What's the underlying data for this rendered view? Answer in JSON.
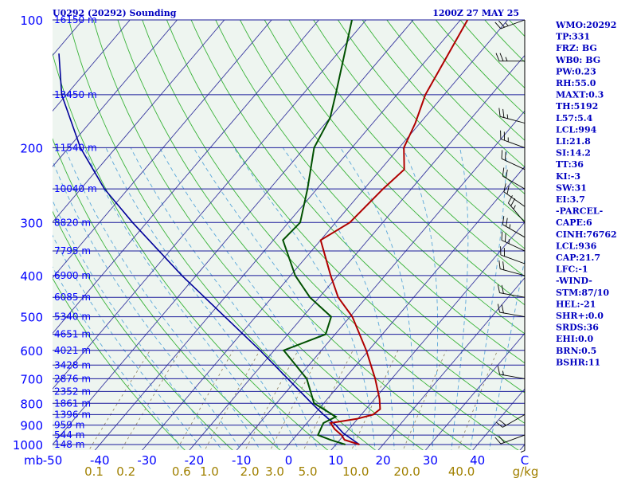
{
  "title_left": "U0292 (20292) Sounding",
  "title_right": "1200Z 27 MAY 25",
  "colors": {
    "plot_bg": "#eef5f0",
    "isobar": "#1a1a9a",
    "isotherm": "#3a3aa0",
    "dry_adiabat": "#39b339",
    "moist_adiabat": "#59a6d9",
    "mixing_ratio": "#908060",
    "temperature": "#b00000",
    "dewpoint": "#005000",
    "parcel": "#00009a",
    "wind_barb": "#000000"
  },
  "chart_data": {
    "type": "skew-t log-p sounding",
    "y_axis": {
      "label": "mb",
      "scale": "log",
      "range": [
        1000,
        100
      ],
      "ticks": [
        100,
        200,
        300,
        400,
        500,
        600,
        700,
        800,
        900,
        1000
      ]
    },
    "x_axis": {
      "range": [
        -50,
        50
      ],
      "ticks": [
        -50,
        -40,
        -30,
        -20,
        -10,
        0,
        10,
        20,
        30,
        40
      ],
      "last_tick_label": "C"
    },
    "mixing_ratio_axis": {
      "unit": "g/kg",
      "labels": [
        "0.1",
        "0.2",
        "0.6",
        "1.0",
        "2.0",
        "3.0",
        "5.0",
        "10.0",
        "20.0",
        "40.0"
      ],
      "values": [
        0.1,
        0.2,
        0.6,
        1.0,
        2.0,
        3.0,
        5.0,
        10.0,
        20.0,
        40.0
      ]
    },
    "height_labels": [
      {
        "p": 1000,
        "label": "148 m"
      },
      {
        "p": 950,
        "label": "544 m"
      },
      {
        "p": 900,
        "label": "959 m"
      },
      {
        "p": 850,
        "label": "1396 m"
      },
      {
        "p": 800,
        "label": "1861 m"
      },
      {
        "p": 750,
        "label": "2352 m"
      },
      {
        "p": 700,
        "label": "2876 m"
      },
      {
        "p": 650,
        "label": "3428 m"
      },
      {
        "p": 600,
        "label": "4021 m"
      },
      {
        "p": 550,
        "label": "4651 m"
      },
      {
        "p": 500,
        "label": "5340 m"
      },
      {
        "p": 450,
        "label": "6085 m"
      },
      {
        "p": 400,
        "label": "6900 m"
      },
      {
        "p": 350,
        "label": "7795 m"
      },
      {
        "p": 300,
        "label": "8820 m"
      },
      {
        "p": 250,
        "label": "10040 m"
      },
      {
        "p": 200,
        "label": "11540 m"
      },
      {
        "p": 150,
        "label": "13450 m"
      },
      {
        "p": 100,
        "label": "16150 m"
      }
    ],
    "temperature": [
      {
        "p": 1000,
        "t": 15.0
      },
      {
        "p": 975,
        "t": 11.0
      },
      {
        "p": 950,
        "t": 9.5
      },
      {
        "p": 920,
        "t": 7.0
      },
      {
        "p": 890,
        "t": 5.0
      },
      {
        "p": 870,
        "t": 9.8
      },
      {
        "p": 850,
        "t": 12.5
      },
      {
        "p": 825,
        "t": 13.0
      },
      {
        "p": 780,
        "t": 11.0
      },
      {
        "p": 700,
        "t": 6.5
      },
      {
        "p": 600,
        "t": -0.5
      },
      {
        "p": 500,
        "t": -9.5
      },
      {
        "p": 450,
        "t": -16.0
      },
      {
        "p": 400,
        "t": -21.5
      },
      {
        "p": 330,
        "t": -30.0
      },
      {
        "p": 300,
        "t": -27.0
      },
      {
        "p": 250,
        "t": -26.0
      },
      {
        "p": 225,
        "t": -25.0
      },
      {
        "p": 200,
        "t": -29.0
      },
      {
        "p": 175,
        "t": -31.0
      },
      {
        "p": 150,
        "t": -34.0
      },
      {
        "p": 100,
        "t": -38.5
      }
    ],
    "dewpoint": [
      {
        "p": 1000,
        "t": 12.0
      },
      {
        "p": 975,
        "t": 8.0
      },
      {
        "p": 950,
        "t": 4.5
      },
      {
        "p": 890,
        "t": 3.5
      },
      {
        "p": 860,
        "t": 5.0
      },
      {
        "p": 800,
        "t": -2.0
      },
      {
        "p": 700,
        "t": -8.0
      },
      {
        "p": 600,
        "t": -18.0
      },
      {
        "p": 550,
        "t": -12.0
      },
      {
        "p": 500,
        "t": -14.0
      },
      {
        "p": 450,
        "t": -22.0
      },
      {
        "p": 400,
        "t": -29.0
      },
      {
        "p": 330,
        "t": -38.0
      },
      {
        "p": 300,
        "t": -37.5
      },
      {
        "p": 250,
        "t": -42.0
      },
      {
        "p": 200,
        "t": -48.0
      },
      {
        "p": 170,
        "t": -50.0
      },
      {
        "p": 150,
        "t": -53.0
      },
      {
        "p": 125,
        "t": -57.5
      },
      {
        "p": 100,
        "t": -63.0
      }
    ],
    "parcel": [
      {
        "p": 1000,
        "t": 15.0
      },
      {
        "p": 940,
        "t": 9.5
      },
      {
        "p": 900,
        "t": 6.5
      },
      {
        "p": 850,
        "t": 2.0
      },
      {
        "p": 800,
        "t": -2.5
      },
      {
        "p": 700,
        "t": -12.0
      },
      {
        "p": 600,
        "t": -23.0
      },
      {
        "p": 500,
        "t": -36.5
      },
      {
        "p": 400,
        "t": -53.0
      },
      {
        "p": 300,
        "t": -73.0
      },
      {
        "p": 250,
        "t": -85.0
      },
      {
        "p": 200,
        "t": -97.5
      },
      {
        "p": 150,
        "t": -111.0
      },
      {
        "p": 120,
        "t": -119.0
      }
    ],
    "winds": [
      {
        "p": 100,
        "dir": 250,
        "spd": 25
      },
      {
        "p": 125,
        "dir": 270,
        "spd": 25
      },
      {
        "p": 175,
        "dir": 285,
        "spd": 25
      },
      {
        "p": 200,
        "dir": 290,
        "spd": 25
      },
      {
        "p": 225,
        "dir": 295,
        "spd": 20
      },
      {
        "p": 250,
        "dir": 300,
        "spd": 20
      },
      {
        "p": 275,
        "dir": 305,
        "spd": 20
      },
      {
        "p": 300,
        "dir": 320,
        "spd": 25
      },
      {
        "p": 325,
        "dir": 300,
        "spd": 25
      },
      {
        "p": 350,
        "dir": 295,
        "spd": 25
      },
      {
        "p": 375,
        "dir": 290,
        "spd": 20
      },
      {
        "p": 400,
        "dir": 285,
        "spd": 20
      },
      {
        "p": 450,
        "dir": 280,
        "spd": 20
      },
      {
        "p": 500,
        "dir": 280,
        "spd": 20
      },
      {
        "p": 700,
        "dir": 280,
        "spd": 15
      },
      {
        "p": 850,
        "dir": 240,
        "spd": 20
      },
      {
        "p": 900,
        "dir": 180,
        "spd": 5
      },
      {
        "p": 950,
        "dir": 250,
        "spd": 20
      }
    ]
  },
  "indices": [
    "WMO:20292",
    "TP:331",
    "FRZ: BG",
    "WB0: BG",
    "PW:0.23",
    "RH:55.0",
    "MAXT:0.3",
    "TH:5192",
    "L57:5.4",
    "LCL:994",
    "LI:21.8",
    "SI:14.2",
    "TT:36",
    "KI:-3",
    "SW:31",
    "EI:3.7",
    "-PARCEL-",
    "CAPE:6",
    "CINH:76762",
    "LCL:936",
    "CAP:21.7",
    "LFC:-1",
    "-WIND-",
    "STM:87/10",
    "HEL:-21",
    "SHR+:0.0",
    "SRDS:36",
    "EHI:0.0",
    "BRN:0.5",
    "BSHR:11"
  ]
}
